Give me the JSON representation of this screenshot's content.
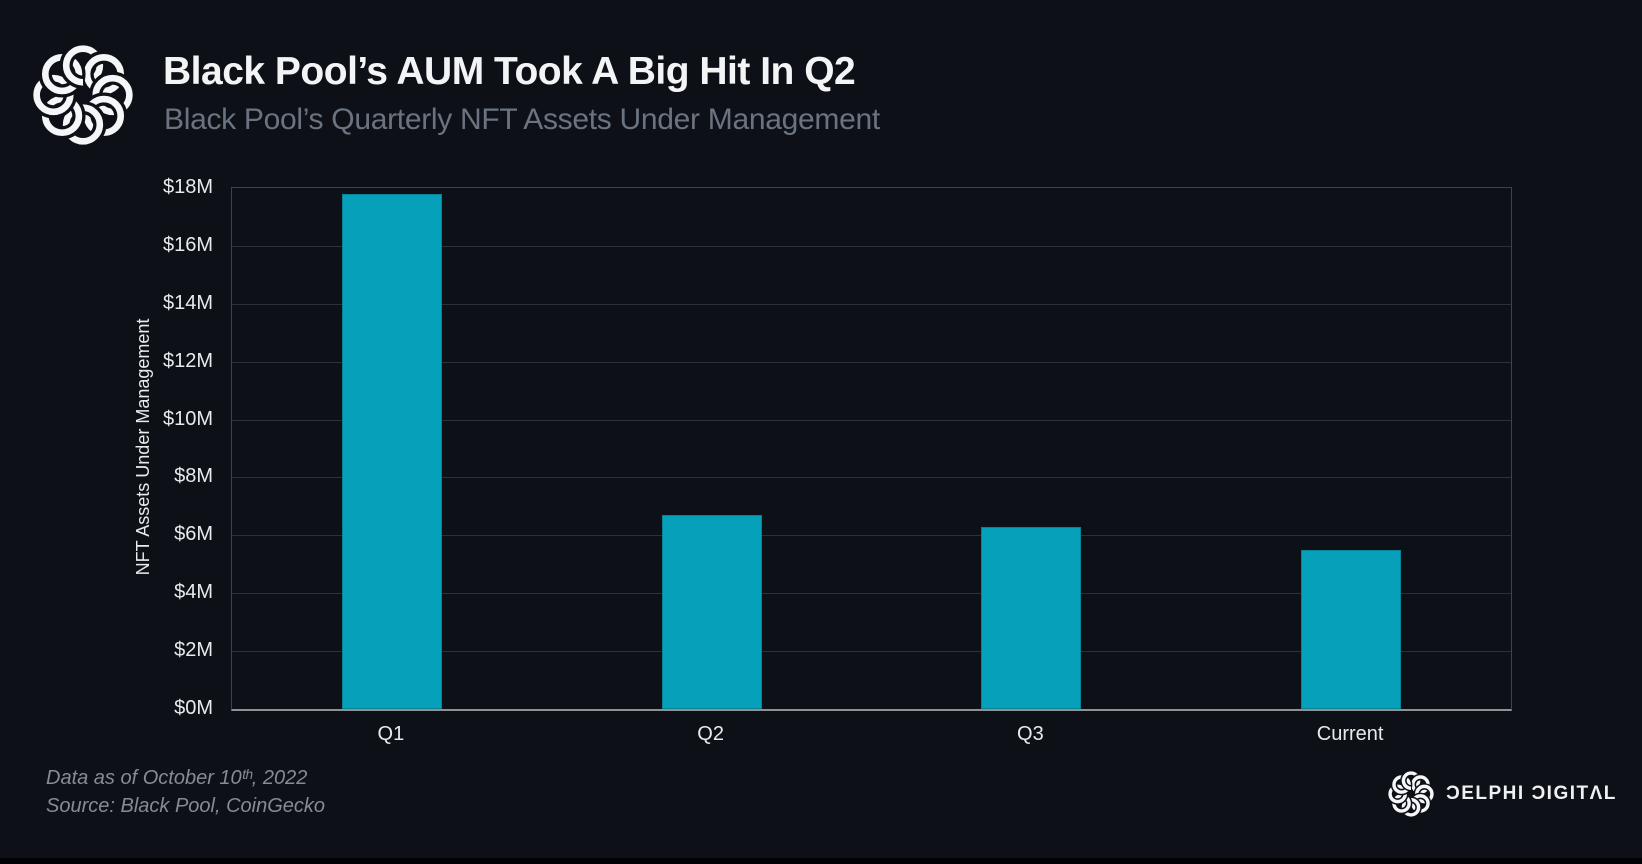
{
  "header": {
    "title": "Black Pool’s AUM Took A Big Hit In Q2",
    "subtitle": "Black Pool’s Quarterly NFT Assets Under Management"
  },
  "footer": {
    "data_as_of": "Data as of October 10ᵗʰ, 2022",
    "source": "Source: Black Pool, CoinGecko"
  },
  "brand": {
    "name": "DELPHI DIGITAL",
    "wordmark_display": "ƆELPHI ƆIGITΛL"
  },
  "colors": {
    "background": "#0d1117",
    "bar": "#07a0bb",
    "gridline": "#2c3137",
    "plot_border": "#3e434a",
    "axis_baseline": "#8e9196",
    "title_text": "#f2f4f6",
    "subtitle_text": "#6b7380",
    "tick_text": "#e8eaec",
    "footer_text": "#858c96"
  },
  "chart_data": {
    "type": "bar",
    "title": "Black Pool’s AUM Took A Big Hit In Q2",
    "subtitle": "Black Pool’s Quarterly NFT Assets Under Management",
    "categories": [
      "Q1",
      "Q2",
      "Q3",
      "Current"
    ],
    "values": [
      17.8,
      6.7,
      6.3,
      5.5
    ],
    "unit": "USD millions",
    "xlabel": "",
    "ylabel": "NFT Assets Under Management",
    "ylim": [
      0,
      18
    ],
    "ytick_step": 2,
    "ytick_prefix": "$",
    "ytick_suffix": "M",
    "grid": "horizontal",
    "legend": "none",
    "bar_color": "#07a0bb"
  }
}
